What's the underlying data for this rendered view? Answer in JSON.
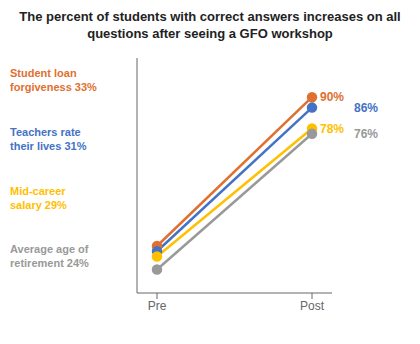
{
  "chart_data": {
    "type": "line",
    "title": "The percent of students with correct answers increases on all questions after seeing a GFO workshop",
    "categories": [
      "Pre",
      "Post"
    ],
    "series": [
      {
        "name": "Student loan\nforgiveness 33%",
        "color": "#E07030",
        "values": [
          33,
          90
        ],
        "value_labels": [
          null,
          "90%"
        ]
      },
      {
        "name": "Teachers rate\ntheir lives 31%",
        "color": "#4472C4",
        "values": [
          31,
          86
        ],
        "value_labels": [
          null,
          "86%"
        ]
      },
      {
        "name": "Mid-career\nsalary 29%",
        "color": "#FFC000",
        "values": [
          29,
          78
        ],
        "value_labels": [
          null,
          "78%"
        ]
      },
      {
        "name": "Average age of\nretirement 24%",
        "color": "#999999",
        "values": [
          24,
          76
        ],
        "value_labels": [
          null,
          "76%"
        ]
      }
    ],
    "ylim": [
      15,
      105
    ],
    "tick_labels": "x",
    "grid": false,
    "data_labels": true,
    "marker": "circle"
  }
}
